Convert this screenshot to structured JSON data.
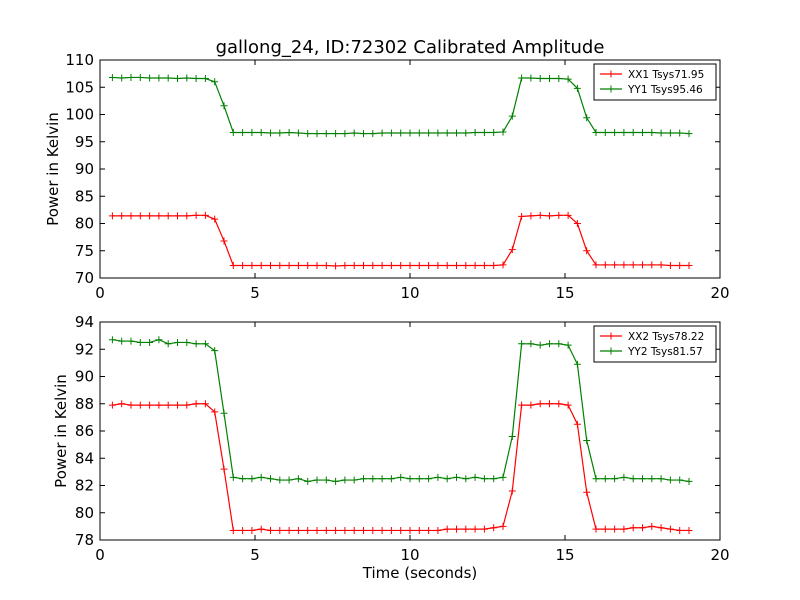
{
  "title": "gallong_24, ID:72302 Calibrated Amplitude",
  "colors": {
    "xx": "#ff0000",
    "yy": "#008000"
  },
  "chart_data": [
    {
      "type": "line",
      "xlabel": "",
      "ylabel": "Power in Kelvin",
      "xlim": [
        0,
        20
      ],
      "ylim": [
        70,
        110
      ],
      "xticks": [
        0,
        5,
        10,
        15,
        20
      ],
      "yticks": [
        70,
        75,
        80,
        85,
        90,
        95,
        100,
        105,
        110
      ],
      "grid": false,
      "legend_position": "top-right",
      "x": [
        0.4,
        0.7,
        1.0,
        1.3,
        1.6,
        1.9,
        2.2,
        2.5,
        2.8,
        3.1,
        3.4,
        3.7,
        4.0,
        4.3,
        4.6,
        4.9,
        5.2,
        5.5,
        5.8,
        6.1,
        6.4,
        6.7,
        7.0,
        7.3,
        7.6,
        7.9,
        8.2,
        8.5,
        8.8,
        9.1,
        9.4,
        9.7,
        10.0,
        10.3,
        10.6,
        10.9,
        11.2,
        11.5,
        11.8,
        12.1,
        12.4,
        12.7,
        13.0,
        13.3,
        13.6,
        13.9,
        14.2,
        14.5,
        14.8,
        15.1,
        15.4,
        15.7,
        16.0,
        16.3,
        16.6,
        16.9,
        17.2,
        17.5,
        17.8,
        18.1,
        18.4,
        18.7,
        19.0
      ],
      "series": [
        {
          "name": "XX1 Tsys71.95",
          "color": "#ff0000",
          "values": [
            81.4,
            81.4,
            81.4,
            81.4,
            81.4,
            81.4,
            81.4,
            81.4,
            81.4,
            81.5,
            81.5,
            80.8,
            76.8,
            72.3,
            72.3,
            72.3,
            72.3,
            72.3,
            72.3,
            72.3,
            72.3,
            72.3,
            72.3,
            72.3,
            72.2,
            72.3,
            72.3,
            72.3,
            72.3,
            72.3,
            72.3,
            72.3,
            72.3,
            72.3,
            72.3,
            72.3,
            72.3,
            72.3,
            72.3,
            72.3,
            72.3,
            72.3,
            72.4,
            75.2,
            81.3,
            81.4,
            81.5,
            81.4,
            81.5,
            81.5,
            80.0,
            75.0,
            72.4,
            72.4,
            72.4,
            72.4,
            72.4,
            72.4,
            72.4,
            72.4,
            72.3,
            72.3,
            72.3
          ]
        },
        {
          "name": "YY1 Tsys95.46",
          "color": "#008000",
          "values": [
            106.8,
            106.7,
            106.8,
            106.8,
            106.7,
            106.7,
            106.7,
            106.6,
            106.7,
            106.6,
            106.6,
            106.0,
            101.6,
            96.7,
            96.7,
            96.7,
            96.7,
            96.6,
            96.6,
            96.7,
            96.6,
            96.5,
            96.5,
            96.5,
            96.5,
            96.5,
            96.6,
            96.5,
            96.5,
            96.6,
            96.6,
            96.6,
            96.6,
            96.6,
            96.6,
            96.6,
            96.6,
            96.6,
            96.6,
            96.7,
            96.7,
            96.7,
            96.8,
            99.7,
            106.7,
            106.7,
            106.6,
            106.6,
            106.6,
            106.5,
            104.8,
            99.4,
            96.7,
            96.7,
            96.7,
            96.7,
            96.7,
            96.7,
            96.7,
            96.6,
            96.6,
            96.6,
            96.5
          ]
        }
      ]
    },
    {
      "type": "line",
      "xlabel": "Time (seconds)",
      "ylabel": "Power in Kelvin",
      "xlim": [
        0,
        20
      ],
      "ylim": [
        78,
        94
      ],
      "xticks": [
        0,
        5,
        10,
        15,
        20
      ],
      "yticks": [
        78,
        80,
        82,
        84,
        86,
        88,
        90,
        92,
        94
      ],
      "grid": false,
      "legend_position": "top-right",
      "x": [
        0.4,
        0.7,
        1.0,
        1.3,
        1.6,
        1.9,
        2.2,
        2.5,
        2.8,
        3.1,
        3.4,
        3.7,
        4.0,
        4.3,
        4.6,
        4.9,
        5.2,
        5.5,
        5.8,
        6.1,
        6.4,
        6.7,
        7.0,
        7.3,
        7.6,
        7.9,
        8.2,
        8.5,
        8.8,
        9.1,
        9.4,
        9.7,
        10.0,
        10.3,
        10.6,
        10.9,
        11.2,
        11.5,
        11.8,
        12.1,
        12.4,
        12.7,
        13.0,
        13.3,
        13.6,
        13.9,
        14.2,
        14.5,
        14.8,
        15.1,
        15.4,
        15.7,
        16.0,
        16.3,
        16.6,
        16.9,
        17.2,
        17.5,
        17.8,
        18.1,
        18.4,
        18.7,
        19.0
      ],
      "series": [
        {
          "name": "XX2 Tsys78.22",
          "color": "#ff0000",
          "values": [
            87.9,
            88.0,
            87.9,
            87.9,
            87.9,
            87.9,
            87.9,
            87.9,
            87.9,
            88.0,
            88.0,
            87.4,
            83.2,
            78.7,
            78.7,
            78.7,
            78.8,
            78.7,
            78.7,
            78.7,
            78.7,
            78.7,
            78.7,
            78.7,
            78.7,
            78.7,
            78.7,
            78.7,
            78.7,
            78.7,
            78.7,
            78.7,
            78.7,
            78.7,
            78.7,
            78.7,
            78.8,
            78.8,
            78.8,
            78.8,
            78.8,
            78.9,
            79.0,
            81.6,
            87.9,
            87.9,
            88.0,
            88.0,
            88.0,
            87.9,
            86.5,
            81.5,
            78.8,
            78.8,
            78.8,
            78.8,
            78.9,
            78.9,
            79.0,
            78.9,
            78.8,
            78.7,
            78.7
          ]
        },
        {
          "name": "YY2 Tsys81.57",
          "color": "#008000",
          "values": [
            92.7,
            92.6,
            92.6,
            92.5,
            92.5,
            92.7,
            92.4,
            92.5,
            92.5,
            92.4,
            92.4,
            91.9,
            87.3,
            82.6,
            82.5,
            82.5,
            82.6,
            82.5,
            82.4,
            82.4,
            82.5,
            82.3,
            82.4,
            82.4,
            82.3,
            82.4,
            82.4,
            82.5,
            82.5,
            82.5,
            82.5,
            82.6,
            82.5,
            82.5,
            82.5,
            82.6,
            82.5,
            82.6,
            82.5,
            82.6,
            82.5,
            82.5,
            82.6,
            85.6,
            92.4,
            92.4,
            92.3,
            92.4,
            92.4,
            92.3,
            90.9,
            85.3,
            82.5,
            82.5,
            82.5,
            82.6,
            82.5,
            82.5,
            82.5,
            82.5,
            82.4,
            82.4,
            82.3
          ]
        }
      ]
    }
  ]
}
